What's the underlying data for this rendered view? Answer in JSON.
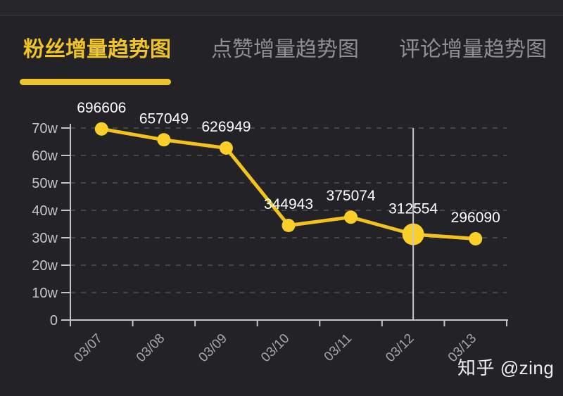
{
  "header": {
    "tabs": [
      {
        "label": "粉丝增量趋势图",
        "active": true
      },
      {
        "label": "点赞增量趋势图",
        "active": false
      },
      {
        "label": "评论增量趋势图",
        "active": false
      }
    ]
  },
  "watermark": "知乎 @zing",
  "colors": {
    "background": "#222227",
    "topbar": "#26262B",
    "accent_yellow": "#EFC32A",
    "line": "#F2C21E",
    "point": "#FBCF2A",
    "grid": "#46464A",
    "axis": "#C4C4C8",
    "y_label": "#C6C6CA",
    "x_label": "#A6A6AA",
    "data_label": "#FFFFFF",
    "crosshair": "#C8C8CC",
    "inactive_tab": "#8F8F94"
  },
  "chart_data": {
    "type": "line",
    "title": "粉丝增量趋势图",
    "categories": [
      "03/07",
      "03/08",
      "03/09",
      "03/10",
      "03/11",
      "03/12",
      "03/13"
    ],
    "values": [
      696606,
      657049,
      626949,
      344943,
      375074,
      312554,
      296090
    ],
    "y_tick_labels": [
      "0",
      "10w",
      "20w",
      "30w",
      "40w",
      "50w",
      "60w",
      "70w"
    ],
    "ylim": [
      0,
      700000
    ],
    "y_unit": "w = 10000",
    "grid": "horizontal dashed",
    "legend": "none",
    "selected_index": 5,
    "selected_category": "03/12",
    "selected_value": 312554
  }
}
